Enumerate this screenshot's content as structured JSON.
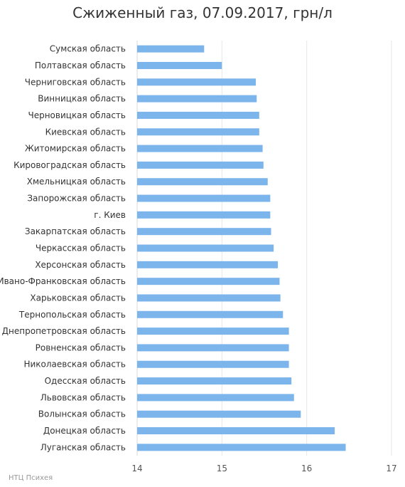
{
  "chart_data": {
    "type": "bar",
    "orientation": "horizontal",
    "title": "Сжиженный газ, 07.09.2017, грн/л",
    "xlabel": "",
    "ylabel": "",
    "xlim": [
      14,
      17
    ],
    "ticks": [
      "14",
      "15",
      "16",
      "17"
    ],
    "bar_color": "#7cb5ec",
    "grid": "vertical",
    "categories": [
      "Сумская область",
      "Полтавская область",
      "Черниговская область",
      "Винницкая область",
      "Черновицкая область",
      "Киевская область",
      "Житомирская область",
      "Кировоградская область",
      "Хмельницкая область",
      "Запорожская область",
      "г. Киев",
      "Закарпатская область",
      "Черкасская область",
      "Херсонская область",
      "Ивано-Франковская область",
      "Харьковская область",
      "Тернопольская область",
      "Днепропетровская область",
      "Ровненская область",
      "Николаевская область",
      "Одесская область",
      "Львовская область",
      "Волынская область",
      "Донецкая область",
      "Луганская область"
    ],
    "values": [
      14.79,
      15.0,
      15.4,
      15.41,
      15.44,
      15.44,
      15.48,
      15.49,
      15.54,
      15.57,
      15.57,
      15.58,
      15.61,
      15.66,
      15.68,
      15.69,
      15.72,
      15.79,
      15.79,
      15.79,
      15.82,
      15.85,
      15.93,
      16.33,
      16.46
    ]
  },
  "source": "НТЦ Психея"
}
